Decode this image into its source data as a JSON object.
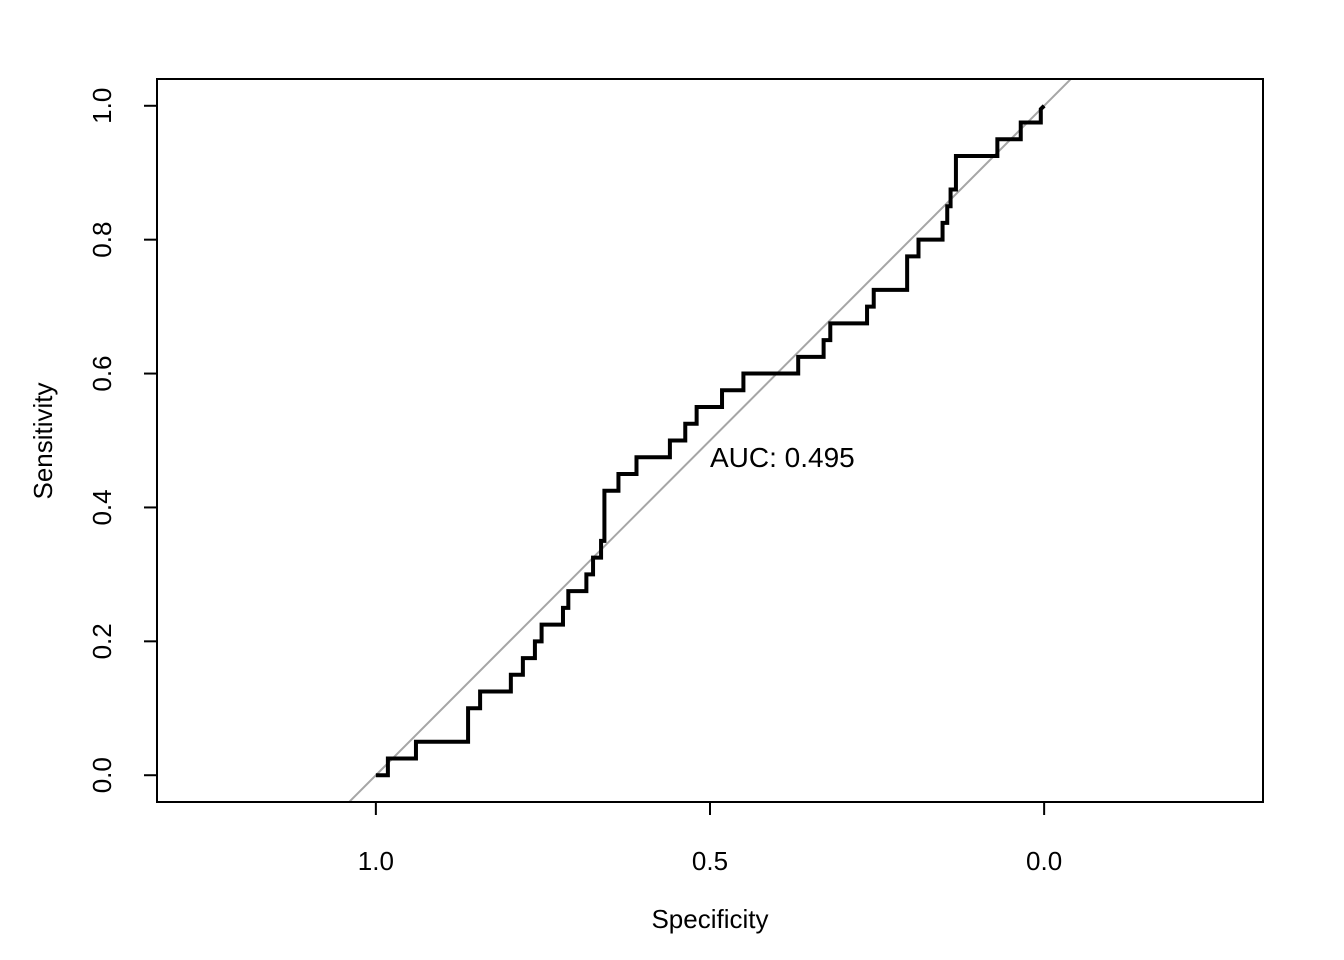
{
  "chart_data": {
    "type": "line",
    "title": "",
    "xlabel": "Specificity",
    "ylabel": "Sensitivity",
    "x_reversed": true,
    "xlim": [
      1.3275,
      -0.3275
    ],
    "ylim": [
      -0.04,
      1.04
    ],
    "xticks": [
      1.0,
      0.5,
      0.0
    ],
    "xtick_labels": [
      "1.0",
      "0.5",
      "0.0"
    ],
    "yticks": [
      0.0,
      0.2,
      0.4,
      0.6,
      0.8,
      1.0
    ],
    "ytick_labels": [
      "0.0",
      "0.2",
      "0.4",
      "0.6",
      "0.8",
      "1.0"
    ],
    "grid": false,
    "legend": "none",
    "annotation": {
      "text": "AUC: 0.495",
      "x": 0.5,
      "y": 0.475
    },
    "reference_line": {
      "name": "",
      "color": "#a6a6a6",
      "points": [
        [
          1.0,
          0.0
        ],
        [
          0.0,
          1.0
        ]
      ]
    },
    "series": [
      {
        "name": "",
        "color": "#000000",
        "x": [
          1.0,
          0.982,
          0.982,
          0.94,
          0.94,
          0.862,
          0.862,
          0.844,
          0.844,
          0.798,
          0.798,
          0.78,
          0.78,
          0.762,
          0.762,
          0.752,
          0.752,
          0.72,
          0.72,
          0.712,
          0.712,
          0.685,
          0.685,
          0.675,
          0.675,
          0.663,
          0.663,
          0.658,
          0.658,
          0.637,
          0.637,
          0.61,
          0.61,
          0.56,
          0.56,
          0.537,
          0.537,
          0.52,
          0.52,
          0.482,
          0.482,
          0.45,
          0.45,
          0.368,
          0.368,
          0.33,
          0.33,
          0.32,
          0.32,
          0.265,
          0.265,
          0.255,
          0.255,
          0.205,
          0.205,
          0.188,
          0.188,
          0.152,
          0.152,
          0.145,
          0.145,
          0.14,
          0.14,
          0.132,
          0.132,
          0.07,
          0.07,
          0.035,
          0.035,
          0.005,
          0.005,
          0.0
        ],
        "y": [
          0.0,
          0.0,
          0.025,
          0.025,
          0.05,
          0.05,
          0.1,
          0.1,
          0.125,
          0.125,
          0.15,
          0.15,
          0.175,
          0.175,
          0.2,
          0.2,
          0.225,
          0.225,
          0.25,
          0.25,
          0.275,
          0.275,
          0.3,
          0.3,
          0.325,
          0.325,
          0.35,
          0.35,
          0.425,
          0.425,
          0.45,
          0.45,
          0.475,
          0.475,
          0.5,
          0.5,
          0.525,
          0.525,
          0.55,
          0.55,
          0.575,
          0.575,
          0.6,
          0.6,
          0.625,
          0.625,
          0.65,
          0.65,
          0.675,
          0.675,
          0.7,
          0.7,
          0.725,
          0.725,
          0.775,
          0.775,
          0.8,
          0.8,
          0.825,
          0.825,
          0.85,
          0.85,
          0.875,
          0.875,
          0.925,
          0.925,
          0.95,
          0.95,
          0.975,
          0.975,
          0.995,
          1.0
        ]
      }
    ]
  }
}
